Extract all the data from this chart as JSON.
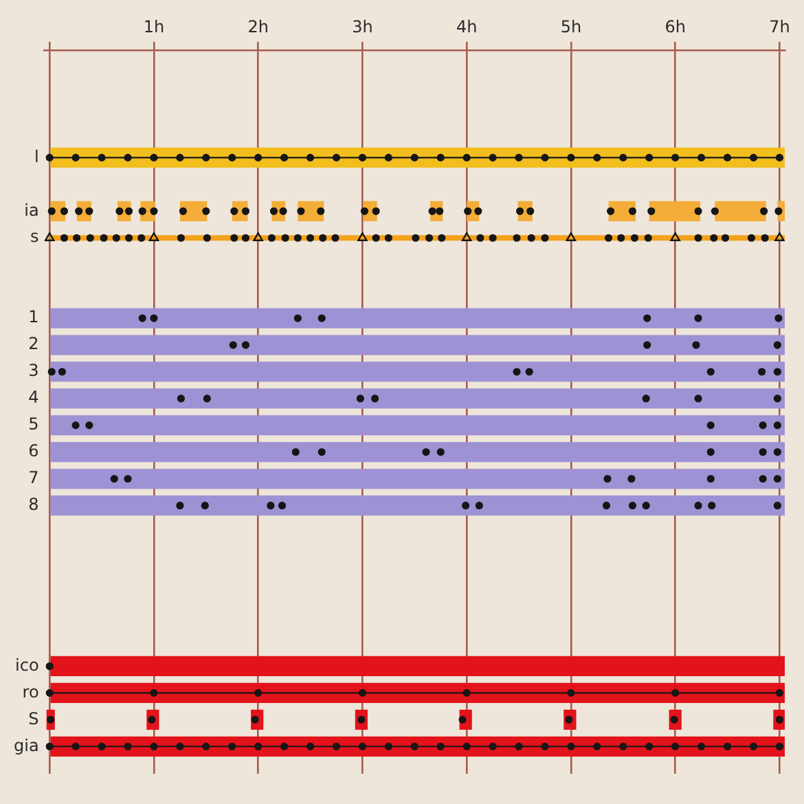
{
  "chart_data": {
    "type": "bar",
    "orientation": "horizontal",
    "marker": "circle",
    "grid": "x",
    "categories": [
      null,
      null,
      null,
      "l",
      null,
      "ia",
      "s",
      null,
      null,
      "1",
      "2",
      "3",
      "4",
      "5",
      "6",
      "7",
      "8",
      null,
      null,
      null,
      null,
      null,
      "ico",
      "ro",
      "S",
      "gia"
    ],
    "xlim": [
      -0.05,
      7.05
    ],
    "xticks": [
      {
        "value": 0,
        "label": null
      },
      {
        "value": 1,
        "label": "1h"
      },
      {
        "value": 2,
        "label": "2h"
      },
      {
        "value": 3,
        "label": "3h"
      },
      {
        "value": 4,
        "label": "4h"
      },
      {
        "value": 5,
        "label": "5h"
      },
      {
        "value": 6,
        "label": "6h"
      },
      {
        "value": 7,
        "label": "7h"
      }
    ],
    "series": [
      {
        "values": [
          null,
          null,
          null,
          7.05,
          null,
          null,
          null,
          null,
          null,
          7.05,
          7.05,
          7.05,
          7.05,
          7.05,
          7.05,
          7.05,
          7.05,
          null,
          null,
          null,
          null,
          null,
          7.05,
          7.05,
          null,
          7.05
        ],
        "colors": [
          null,
          null,
          null,
          "#f2be1e",
          null,
          null,
          null,
          null,
          null,
          "#9e92d4",
          "#9e92d4",
          "#9e92d4",
          "#9e92d4",
          "#9e92d4",
          "#9e92d4",
          "#9e92d4",
          "#9e92d4",
          null,
          null,
          null,
          null,
          null,
          "#e2131b",
          "#e2131b",
          null,
          "#e2131b"
        ]
      },
      {
        "color": "#f3ad38",
        "base": [
          null,
          null,
          null,
          null,
          null,
          0,
          null,
          null,
          null,
          null,
          null,
          null,
          null,
          null,
          null,
          null,
          null,
          null,
          null,
          null,
          null,
          null,
          null,
          null,
          null,
          null
        ],
        "values": [
          null,
          null,
          null,
          null,
          null,
          0.15,
          null,
          null,
          null,
          null,
          null,
          null,
          null,
          null,
          null,
          null,
          null,
          null,
          null,
          null,
          null,
          null,
          null,
          null,
          null,
          null
        ]
      },
      {
        "color": "#f3ad38",
        "base": [
          null,
          null,
          null,
          null,
          null,
          0.26,
          null,
          null,
          null,
          null,
          null,
          null,
          null,
          null,
          null,
          null,
          null,
          null,
          null,
          null,
          null,
          null,
          null,
          null,
          null,
          null
        ],
        "values": [
          null,
          null,
          null,
          null,
          null,
          0.14,
          null,
          null,
          null,
          null,
          null,
          null,
          null,
          null,
          null,
          null,
          null,
          null,
          null,
          null,
          null,
          null,
          null,
          null,
          null,
          null
        ]
      },
      {
        "color": "#f3ad38",
        "base": [
          null,
          null,
          null,
          null,
          null,
          0.65,
          null,
          null,
          null,
          null,
          null,
          null,
          null,
          null,
          null,
          null,
          null,
          null,
          null,
          null,
          null,
          null,
          null,
          null,
          null,
          null
        ],
        "values": [
          null,
          null,
          null,
          null,
          null,
          0.13,
          null,
          null,
          null,
          null,
          null,
          null,
          null,
          null,
          null,
          null,
          null,
          null,
          null,
          null,
          null,
          null,
          null,
          null,
          null,
          null
        ]
      },
      {
        "color": "#f3ad38",
        "base": [
          null,
          null,
          null,
          null,
          null,
          0.87,
          null,
          null,
          null,
          null,
          null,
          null,
          null,
          null,
          null,
          null,
          null,
          null,
          null,
          null,
          null,
          null,
          null,
          null,
          null,
          null
        ],
        "values": [
          null,
          null,
          null,
          null,
          null,
          0.14,
          null,
          null,
          null,
          null,
          null,
          null,
          null,
          null,
          null,
          null,
          null,
          null,
          null,
          null,
          null,
          null,
          null,
          null,
          null,
          null
        ]
      },
      {
        "color": "#f3ad38",
        "base": [
          null,
          null,
          null,
          null,
          null,
          1.25,
          null,
          null,
          null,
          null,
          null,
          null,
          null,
          null,
          null,
          null,
          null,
          null,
          null,
          null,
          null,
          null,
          null,
          null,
          null,
          null
        ],
        "values": [
          null,
          null,
          null,
          null,
          null,
          0.26,
          null,
          null,
          null,
          null,
          null,
          null,
          null,
          null,
          null,
          null,
          null,
          null,
          null,
          null,
          null,
          null,
          null,
          null,
          null,
          null
        ]
      },
      {
        "color": "#f3ad38",
        "base": [
          null,
          null,
          null,
          null,
          null,
          1.75,
          null,
          null,
          null,
          null,
          null,
          null,
          null,
          null,
          null,
          null,
          null,
          null,
          null,
          null,
          null,
          null,
          null,
          null,
          null,
          null
        ],
        "values": [
          null,
          null,
          null,
          null,
          null,
          0.15,
          null,
          null,
          null,
          null,
          null,
          null,
          null,
          null,
          null,
          null,
          null,
          null,
          null,
          null,
          null,
          null,
          null,
          null,
          null,
          null
        ]
      },
      {
        "color": "#f3ad38",
        "base": [
          null,
          null,
          null,
          null,
          null,
          2.13,
          null,
          null,
          null,
          null,
          null,
          null,
          null,
          null,
          null,
          null,
          null,
          null,
          null,
          null,
          null,
          null,
          null,
          null,
          null,
          null
        ],
        "values": [
          null,
          null,
          null,
          null,
          null,
          0.13,
          null,
          null,
          null,
          null,
          null,
          null,
          null,
          null,
          null,
          null,
          null,
          null,
          null,
          null,
          null,
          null,
          null,
          null,
          null,
          null
        ]
      },
      {
        "color": "#f3ad38",
        "base": [
          null,
          null,
          null,
          null,
          null,
          2.38,
          null,
          null,
          null,
          null,
          null,
          null,
          null,
          null,
          null,
          null,
          null,
          null,
          null,
          null,
          null,
          null,
          null,
          null,
          null,
          null
        ],
        "values": [
          null,
          null,
          null,
          null,
          null,
          0.25,
          null,
          null,
          null,
          null,
          null,
          null,
          null,
          null,
          null,
          null,
          null,
          null,
          null,
          null,
          null,
          null,
          null,
          null,
          null,
          null
        ]
      },
      {
        "color": "#f3ad38",
        "base": [
          null,
          null,
          null,
          null,
          null,
          3.01,
          null,
          null,
          null,
          null,
          null,
          null,
          null,
          null,
          null,
          null,
          null,
          null,
          null,
          null,
          null,
          null,
          null,
          null,
          null,
          null
        ],
        "values": [
          null,
          null,
          null,
          null,
          null,
          0.13,
          null,
          null,
          null,
          null,
          null,
          null,
          null,
          null,
          null,
          null,
          null,
          null,
          null,
          null,
          null,
          null,
          null,
          null,
          null,
          null
        ]
      },
      {
        "color": "#f3ad38",
        "base": [
          null,
          null,
          null,
          null,
          null,
          3.65,
          null,
          null,
          null,
          null,
          null,
          null,
          null,
          null,
          null,
          null,
          null,
          null,
          null,
          null,
          null,
          null,
          null,
          null,
          null,
          null
        ],
        "values": [
          null,
          null,
          null,
          null,
          null,
          0.12,
          null,
          null,
          null,
          null,
          null,
          null,
          null,
          null,
          null,
          null,
          null,
          null,
          null,
          null,
          null,
          null,
          null,
          null,
          null,
          null
        ]
      },
      {
        "color": "#f3ad38",
        "base": [
          null,
          null,
          null,
          null,
          null,
          4.0,
          null,
          null,
          null,
          null,
          null,
          null,
          null,
          null,
          null,
          null,
          null,
          null,
          null,
          null,
          null,
          null,
          null,
          null,
          null,
          null
        ],
        "values": [
          null,
          null,
          null,
          null,
          null,
          0.12,
          null,
          null,
          null,
          null,
          null,
          null,
          null,
          null,
          null,
          null,
          null,
          null,
          null,
          null,
          null,
          null,
          null,
          null,
          null,
          null
        ]
      },
      {
        "color": "#f3ad38",
        "base": [
          null,
          null,
          null,
          null,
          null,
          4.49,
          null,
          null,
          null,
          null,
          null,
          null,
          null,
          null,
          null,
          null,
          null,
          null,
          null,
          null,
          null,
          null,
          null,
          null,
          null,
          null
        ],
        "values": [
          null,
          null,
          null,
          null,
          null,
          0.14,
          null,
          null,
          null,
          null,
          null,
          null,
          null,
          null,
          null,
          null,
          null,
          null,
          null,
          null,
          null,
          null,
          null,
          null,
          null,
          null
        ]
      },
      {
        "color": "#f3ad38",
        "base": [
          null,
          null,
          null,
          null,
          null,
          5.36,
          null,
          null,
          null,
          null,
          null,
          null,
          null,
          null,
          null,
          null,
          null,
          null,
          null,
          null,
          null,
          null,
          null,
          null,
          null,
          null
        ],
        "values": [
          null,
          null,
          null,
          null,
          null,
          0.26,
          null,
          null,
          null,
          null,
          null,
          null,
          null,
          null,
          null,
          null,
          null,
          null,
          null,
          null,
          null,
          null,
          null,
          null,
          null,
          null
        ]
      },
      {
        "color": "#f3ad38",
        "base": [
          null,
          null,
          null,
          null,
          null,
          5.75,
          null,
          null,
          null,
          null,
          null,
          null,
          null,
          null,
          null,
          null,
          null,
          null,
          null,
          null,
          null,
          null,
          null,
          null,
          null,
          null
        ],
        "values": [
          null,
          null,
          null,
          null,
          null,
          0.49,
          null,
          null,
          null,
          null,
          null,
          null,
          null,
          null,
          null,
          null,
          null,
          null,
          null,
          null,
          null,
          null,
          null,
          null,
          null,
          null
        ]
      },
      {
        "color": "#f3ad38",
        "base": [
          null,
          null,
          null,
          null,
          null,
          6.38,
          null,
          null,
          null,
          null,
          null,
          null,
          null,
          null,
          null,
          null,
          null,
          null,
          null,
          null,
          null,
          null,
          null,
          null,
          null,
          null
        ],
        "values": [
          null,
          null,
          null,
          null,
          null,
          0.49,
          null,
          null,
          null,
          null,
          null,
          null,
          null,
          null,
          null,
          null,
          null,
          null,
          null,
          null,
          null,
          null,
          null,
          null,
          null,
          null
        ]
      },
      {
        "color": "#f3ad38",
        "base": [
          null,
          null,
          null,
          null,
          null,
          6.98,
          null,
          null,
          null,
          null,
          null,
          null,
          null,
          null,
          null,
          null,
          null,
          null,
          null,
          null,
          null,
          null,
          null,
          null,
          null,
          null
        ],
        "values": [
          null,
          null,
          null,
          null,
          null,
          0.07,
          null,
          null,
          null,
          null,
          null,
          null,
          null,
          null,
          null,
          null,
          null,
          null,
          null,
          null,
          null,
          null,
          null,
          null,
          null,
          null
        ]
      },
      {
        "color": "#e2131b",
        "base": [
          null,
          null,
          null,
          null,
          null,
          null,
          null,
          null,
          null,
          null,
          null,
          null,
          null,
          null,
          null,
          null,
          null,
          null,
          null,
          null,
          null,
          null,
          null,
          null,
          -0.03,
          null
        ],
        "values": [
          null,
          null,
          null,
          null,
          null,
          null,
          null,
          null,
          null,
          null,
          null,
          null,
          null,
          null,
          null,
          null,
          null,
          null,
          null,
          null,
          null,
          null,
          null,
          null,
          0.08,
          null
        ]
      },
      {
        "color": "#e2131b",
        "base": [
          null,
          null,
          null,
          null,
          null,
          null,
          null,
          null,
          null,
          null,
          null,
          null,
          null,
          null,
          null,
          null,
          null,
          null,
          null,
          null,
          null,
          null,
          null,
          null,
          0.93,
          null
        ],
        "values": [
          null,
          null,
          null,
          null,
          null,
          null,
          null,
          null,
          null,
          null,
          null,
          null,
          null,
          null,
          null,
          null,
          null,
          null,
          null,
          null,
          null,
          null,
          null,
          null,
          0.12,
          null
        ]
      },
      {
        "color": "#e2131b",
        "base": [
          null,
          null,
          null,
          null,
          null,
          null,
          null,
          null,
          null,
          null,
          null,
          null,
          null,
          null,
          null,
          null,
          null,
          null,
          null,
          null,
          null,
          null,
          null,
          null,
          1.93,
          null
        ],
        "values": [
          null,
          null,
          null,
          null,
          null,
          null,
          null,
          null,
          null,
          null,
          null,
          null,
          null,
          null,
          null,
          null,
          null,
          null,
          null,
          null,
          null,
          null,
          null,
          null,
          0.12,
          null
        ]
      },
      {
        "color": "#e2131b",
        "base": [
          null,
          null,
          null,
          null,
          null,
          null,
          null,
          null,
          null,
          null,
          null,
          null,
          null,
          null,
          null,
          null,
          null,
          null,
          null,
          null,
          null,
          null,
          null,
          null,
          2.93,
          null
        ],
        "values": [
          null,
          null,
          null,
          null,
          null,
          null,
          null,
          null,
          null,
          null,
          null,
          null,
          null,
          null,
          null,
          null,
          null,
          null,
          null,
          null,
          null,
          null,
          null,
          null,
          0.12,
          null
        ]
      },
      {
        "color": "#e2131b",
        "base": [
          null,
          null,
          null,
          null,
          null,
          null,
          null,
          null,
          null,
          null,
          null,
          null,
          null,
          null,
          null,
          null,
          null,
          null,
          null,
          null,
          null,
          null,
          null,
          null,
          3.93,
          null
        ],
        "values": [
          null,
          null,
          null,
          null,
          null,
          null,
          null,
          null,
          null,
          null,
          null,
          null,
          null,
          null,
          null,
          null,
          null,
          null,
          null,
          null,
          null,
          null,
          null,
          null,
          0.12,
          null
        ]
      },
      {
        "color": "#e2131b",
        "base": [
          null,
          null,
          null,
          null,
          null,
          null,
          null,
          null,
          null,
          null,
          null,
          null,
          null,
          null,
          null,
          null,
          null,
          null,
          null,
          null,
          null,
          null,
          null,
          null,
          4.93,
          null
        ],
        "values": [
          null,
          null,
          null,
          null,
          null,
          null,
          null,
          null,
          null,
          null,
          null,
          null,
          null,
          null,
          null,
          null,
          null,
          null,
          null,
          null,
          null,
          null,
          null,
          null,
          0.12,
          null
        ]
      },
      {
        "color": "#e2131b",
        "base": [
          null,
          null,
          null,
          null,
          null,
          null,
          null,
          null,
          null,
          null,
          null,
          null,
          null,
          null,
          null,
          null,
          null,
          null,
          null,
          null,
          null,
          null,
          null,
          null,
          5.94,
          null
        ],
        "values": [
          null,
          null,
          null,
          null,
          null,
          null,
          null,
          null,
          null,
          null,
          null,
          null,
          null,
          null,
          null,
          null,
          null,
          null,
          null,
          null,
          null,
          null,
          null,
          null,
          0.12,
          null
        ]
      },
      {
        "color": "#e2131b",
        "base": [
          null,
          null,
          null,
          null,
          null,
          null,
          null,
          null,
          null,
          null,
          null,
          null,
          null,
          null,
          null,
          null,
          null,
          null,
          null,
          null,
          null,
          null,
          null,
          null,
          6.94,
          null
        ],
        "values": [
          null,
          null,
          null,
          null,
          null,
          null,
          null,
          null,
          null,
          null,
          null,
          null,
          null,
          null,
          null,
          null,
          null,
          null,
          null,
          null,
          null,
          null,
          null,
          null,
          0.11,
          null
        ]
      },
      {
        "type": "line",
        "color": "#f4a21c",
        "marker": "none",
        "x": [
          "s",
          "s"
        ],
        "values": [
          0,
          7.05
        ]
      },
      {
        "type": "line",
        "color": "#161616",
        "x": [
          "l",
          "l",
          "l",
          "l",
          "l",
          "l",
          "l",
          "l",
          "l",
          "l",
          "l",
          "l",
          "l",
          "l",
          "l",
          "l",
          "l",
          "l",
          "l",
          "l",
          "l",
          "l",
          "l",
          "l",
          "l",
          "l",
          "l",
          "l",
          "l"
        ],
        "values": [
          0,
          0.25,
          0.5,
          0.75,
          1,
          1.25,
          1.5,
          1.75,
          2,
          2.25,
          2.5,
          2.75,
          3,
          3.25,
          3.5,
          3.75,
          4,
          4.25,
          4.5,
          4.75,
          5,
          5.25,
          5.5,
          5.75,
          6,
          6.25,
          6.5,
          6.75,
          7
        ]
      },
      {
        "type": "scatter",
        "color": "#161616",
        "x": [
          "ia",
          "ia",
          "ia",
          "ia",
          "ia",
          "ia",
          "ia",
          "ia",
          "ia",
          "ia",
          "ia",
          "ia",
          "ia",
          "ia",
          "ia",
          "ia",
          "ia",
          "ia",
          "ia",
          "ia",
          "ia",
          "ia",
          "ia",
          "ia",
          "ia",
          "ia",
          "ia",
          "ia",
          "ia",
          "ia",
          "ia"
        ],
        "values": [
          0.02,
          0.14,
          0.28,
          0.38,
          0.67,
          0.76,
          0.89,
          1,
          1.28,
          1.5,
          1.77,
          1.88,
          2.15,
          2.24,
          2.41,
          2.6,
          3.02,
          3.13,
          3.67,
          3.74,
          4.01,
          4.11,
          4.51,
          4.61,
          5.38,
          5.59,
          5.77,
          6.22,
          6.38,
          6.85,
          6.99
        ]
      },
      {
        "type": "line",
        "color": "#161616",
        "x": [
          "ro",
          "ro",
          "ro",
          "ro",
          "ro",
          "ro",
          "ro",
          "ro"
        ],
        "values": [
          0,
          1,
          2,
          3,
          4,
          5,
          6,
          7
        ]
      },
      {
        "type": "line",
        "color": "#161616",
        "x": [
          "gia",
          "gia",
          "gia",
          "gia",
          "gia",
          "gia",
          "gia",
          "gia",
          "gia",
          "gia",
          "gia",
          "gia",
          "gia",
          "gia",
          "gia",
          "gia",
          "gia",
          "gia",
          "gia",
          "gia",
          "gia",
          "gia",
          "gia",
          "gia",
          "gia",
          "gia",
          "gia",
          "gia",
          "gia"
        ],
        "values": [
          0,
          0.25,
          0.5,
          0.75,
          1,
          1.25,
          1.5,
          1.75,
          2,
          2.25,
          2.5,
          2.75,
          3,
          3.25,
          3.5,
          3.75,
          4,
          4.25,
          4.5,
          4.75,
          5,
          5.25,
          5.5,
          5.75,
          6,
          6.25,
          6.5,
          6.75,
          7
        ]
      },
      {
        "type": "scatter",
        "color": "#161616",
        "x": [
          "s",
          "s",
          "s",
          "s",
          "s",
          "s",
          "s",
          "s",
          "s",
          "s",
          "s",
          "s",
          "s",
          "s",
          "s",
          "s",
          "s",
          "s",
          "s",
          "s",
          "s",
          "s",
          "s",
          "s",
          "s",
          "s",
          "s",
          "s",
          "s",
          "s",
          "s",
          "s",
          "s",
          "s",
          "s",
          "s"
        ],
        "values": [
          0.14,
          0.26,
          0.39,
          0.52,
          0.64,
          0.76,
          0.88,
          1.26,
          1.51,
          1.77,
          1.88,
          2.13,
          2.26,
          2.38,
          2.5,
          2.62,
          2.74,
          3.13,
          3.25,
          3.51,
          3.64,
          3.76,
          4.13,
          4.25,
          4.48,
          4.62,
          4.75,
          5.36,
          5.48,
          5.61,
          5.74,
          6.22,
          6.37,
          6.48,
          6.73,
          6.86
        ]
      },
      {
        "type": "scatter",
        "color": "#161616",
        "marker": "triangle",
        "x": [
          "s",
          "s",
          "s",
          "s",
          "s",
          "s",
          "s",
          "s"
        ],
        "values": [
          0,
          1,
          2,
          3,
          4,
          5,
          6,
          7
        ]
      },
      {
        "type": "scatter",
        "color": "#161616",
        "x": [
          "1",
          "1",
          "1",
          "1",
          "1",
          "1",
          "1",
          "2",
          "2",
          "2",
          "2",
          "2",
          "3",
          "3",
          "3",
          "3",
          "3",
          "3",
          "3",
          "4",
          "4",
          "4",
          "4",
          "4",
          "4",
          "4",
          "5",
          "5",
          "5",
          "5",
          "5",
          "6",
          "6",
          "6",
          "6",
          "6",
          "6",
          "6",
          "7",
          "7",
          "7",
          "7",
          "7",
          "7",
          "7",
          "8",
          "8",
          "8",
          "8",
          "8",
          "8",
          "8",
          "8",
          "8",
          "8",
          "8",
          "8"
        ],
        "values": [
          0.89,
          1,
          2.38,
          2.61,
          5.73,
          6.22,
          6.99,
          1.76,
          1.88,
          5.73,
          6.2,
          6.98,
          0.02,
          0.12,
          4.48,
          4.6,
          6.34,
          6.83,
          6.98,
          1.26,
          1.51,
          2.98,
          3.12,
          5.72,
          6.22,
          6.98,
          0.25,
          0.38,
          6.34,
          6.84,
          6.98,
          2.36,
          2.61,
          3.61,
          3.75,
          6.34,
          6.84,
          6.98,
          0.62,
          0.75,
          5.35,
          5.58,
          6.34,
          6.84,
          6.98,
          1.25,
          1.49,
          2.12,
          2.23,
          3.99,
          4.12,
          5.34,
          5.59,
          5.72,
          6.22,
          6.35,
          6.98
        ]
      },
      {
        "type": "scatter",
        "color": "#161616",
        "x": [
          "ico",
          "S",
          "S",
          "S",
          "S",
          "S",
          "S",
          "S",
          "S"
        ],
        "values": [
          0,
          0.01,
          0.98,
          1.97,
          2.99,
          3.96,
          4.98,
          5.99,
          7
        ]
      }
    ]
  }
}
